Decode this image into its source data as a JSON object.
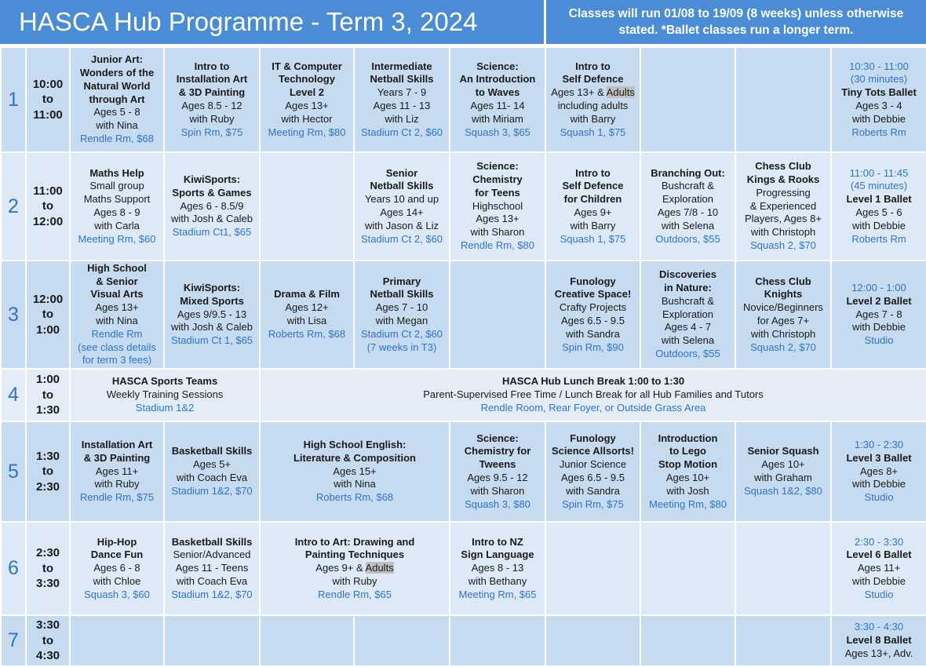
{
  "header": {
    "title": "HASCA Hub Programme - Term 3, 2024",
    "note": "Classes will run 01/08 to 19/09 (8 weeks) unless otherwise stated. *Ballet classes run a longer term."
  },
  "table": {
    "rows": [
      {
        "number": 1,
        "time": [
          "10:00",
          "to",
          "11:00"
        ],
        "cells": [
          {
            "title": [
              "Junior Art:",
              "Wonders of the",
              "Natural World",
              "through Art"
            ],
            "details": [
              "Ages 5 - 8",
              "with Nina"
            ],
            "location": [
              "Rendle Rm, $68"
            ]
          },
          {
            "title": [
              "Intro to",
              "Installation Art",
              "& 3D Painting"
            ],
            "details": [
              "Ages 8.5 - 12",
              "with Ruby"
            ],
            "location": [
              "Spin Rm, $75"
            ]
          },
          {
            "title": [
              "IT & Computer",
              "Technology",
              "Level 2"
            ],
            "details": [
              "Ages 13+",
              "with Hector"
            ],
            "location": [
              "Meeting Rm, $80"
            ]
          },
          {
            "title": [
              "Intermediate",
              "Netball Skills"
            ],
            "details": [
              "Years 7 - 9",
              "Ages 11 - 13",
              "with Liz"
            ],
            "location": [
              "Stadium Ct 2, $60"
            ]
          },
          {
            "title": [
              "Science:",
              "An Introduction",
              "to Waves"
            ],
            "details": [
              "Ages 11- 14",
              "with Miriam"
            ],
            "location": [
              "Squash  3, $65"
            ]
          },
          {
            "title": [
              "Intro to",
              "Self Defence"
            ],
            "details": [
              [
                "Ages 13+ & ",
                "Adults"
              ],
              "including adults",
              "with Barry"
            ],
            "location": [
              "Squash 1, $75"
            ]
          },
          null,
          null,
          {
            "time": [
              "10:30 - 11:00",
              "(30 minutes)"
            ],
            "title": [
              "Tiny Tots Ballet"
            ],
            "details": [
              "Ages 3 - 4",
              "with Debbie"
            ],
            "location": [
              "Roberts Rm"
            ]
          }
        ]
      },
      {
        "number": 2,
        "time": [
          "11:00",
          "to",
          "12:00"
        ],
        "cells": [
          {
            "title": [
              "Maths Help"
            ],
            "details": [
              "Small group",
              "Maths Support",
              "Ages 8 - 9",
              "with Carla"
            ],
            "location": [
              "Meeting Rm, $60"
            ]
          },
          {
            "title": [
              "KiwiSports:",
              "Sports & Games"
            ],
            "details": [
              "Ages 6 - 8.5/9",
              "with Josh & Caleb"
            ],
            "location": [
              "Stadium Ct1, $65"
            ]
          },
          null,
          {
            "title": [
              "Senior",
              "Netball Skills"
            ],
            "details": [
              "Years 10 and up",
              "Ages 14+",
              "with Jason & Liz"
            ],
            "location": [
              "Stadium Ct 2, $60"
            ]
          },
          {
            "title": [
              "Science:",
              "Chemistry",
              "for Teens"
            ],
            "details": [
              "Highschool",
              "Ages 13+",
              "with Sharon"
            ],
            "location": [
              "Rendle Rm, $80"
            ]
          },
          {
            "title": [
              "Intro to",
              "Self Defence",
              "for Children"
            ],
            "details": [
              "Ages 9+",
              "with Barry"
            ],
            "location": [
              "Squash 1, $75"
            ]
          },
          {
            "title": [
              "Branching Out:"
            ],
            "details": [
              "Bushcraft &",
              "Exploration",
              "Ages 7/8 - 10",
              "with Selena"
            ],
            "location": [
              "Outdoors, $55"
            ]
          },
          {
            "title": [
              "Chess Club",
              "Kings & Rooks"
            ],
            "details": [
              "Progressing",
              "& Experienced",
              "Players, Ages 8+",
              "with Christoph"
            ],
            "location": [
              "Squash 2, $70"
            ]
          },
          {
            "time": [
              "11:00 - 11:45",
              "(45 minutes)"
            ],
            "title": [
              "Level 1 Ballet"
            ],
            "details": [
              "Ages 5 - 6",
              "with Debbie"
            ],
            "location": [
              "Roberts Rm"
            ]
          }
        ]
      },
      {
        "number": 3,
        "time": [
          "12:00",
          "to",
          "1:00"
        ],
        "cells": [
          {
            "title": [
              "High School",
              "& Senior",
              "Visual Arts"
            ],
            "details": [
              "Ages 13+",
              "with Nina"
            ],
            "location": [
              "Rendle Rm",
              "(see class details",
              "for term 3 fees)"
            ]
          },
          {
            "title": [
              "KiwiSports:",
              "Mixed Sports"
            ],
            "details": [
              "Ages 9/9.5 - 13",
              "with Josh & Caleb"
            ],
            "location": [
              "Stadium Ct 1, $65"
            ]
          },
          {
            "title": [
              "Drama & Film"
            ],
            "details": [
              "Ages 12+",
              "with Lisa"
            ],
            "location": [
              "Roberts Rm, $68"
            ]
          },
          {
            "title": [
              "Primary",
              "Netball Skills"
            ],
            "details": [
              "Ages 7 - 10",
              "with Megan"
            ],
            "location": [
              "Stadium Ct 2, $60",
              "(7 weeks in T3)"
            ]
          },
          null,
          {
            "title": [
              "Funology",
              "Creative Space!"
            ],
            "details": [
              "Crafty Projects",
              "Ages 6.5 - 9.5",
              "with Sandra"
            ],
            "location": [
              "Spin Rm, $90"
            ]
          },
          {
            "title": [
              "Discoveries",
              "in Nature:"
            ],
            "details": [
              "Bushcraft &",
              "Exploration",
              "Ages 4 - 7",
              "with Selena"
            ],
            "location": [
              "Outdoors, $55"
            ]
          },
          {
            "title": [
              "Chess Club",
              "Knights"
            ],
            "details": [
              "Novice/Beginners",
              "for Ages 7+",
              "with Christoph"
            ],
            "location": [
              "Squash 2, $70"
            ]
          },
          {
            "time": [
              "12:00 - 1:00"
            ],
            "title": [
              "Level 2 Ballet"
            ],
            "details": [
              "Ages 7 - 8",
              "with Debbie"
            ],
            "location": [
              "Studio"
            ]
          }
        ]
      },
      {
        "number": 4,
        "time": [
          "1:00",
          "to",
          "1:30"
        ],
        "cells": [
          {
            "title": [
              "HASCA Sports Teams"
            ],
            "details": [
              "Weekly Training Sessions"
            ],
            "location": [
              "Stadium 1&2"
            ]
          },
          {
            "title": [
              "HASCA Hub Lunch Break 1:00 to 1:30"
            ],
            "details": [
              "Parent-Supervised Free Time / Lunch Break for all Hub Families and Tutors"
            ],
            "location": [
              "Rendle Room, Rear Foyer, or Outside Grass Area"
            ]
          }
        ]
      },
      {
        "number": 5,
        "time": [
          "1:30",
          "to",
          "2:30"
        ],
        "cells": [
          {
            "title": [
              "Installation Art",
              "& 3D Painting"
            ],
            "details": [
              "Ages 11+",
              "with Ruby"
            ],
            "location": [
              "Rendle Rm, $75"
            ]
          },
          {
            "title": [
              "Basketball Skills"
            ],
            "details": [
              "Ages 5+",
              "with Coach Eva"
            ],
            "location": [
              "Stadium 1&2, $70"
            ]
          },
          {
            "title": [
              "High School English:",
              "Literature & Composition"
            ],
            "details": [
              "Ages 15+",
              "with Nina"
            ],
            "location": [
              "Roberts Rm, $68"
            ]
          },
          {
            "title": [
              "Science:",
              "Chemistry for",
              "Tweens"
            ],
            "details": [
              "Ages 9.5 - 12",
              "with Sharon"
            ],
            "location": [
              "Squash 3, $80"
            ]
          },
          {
            "title": [
              "Funology",
              "Science Allsorts!"
            ],
            "details": [
              "Junior Science",
              "Ages 6.5 - 9.5",
              "with Sandra"
            ],
            "location": [
              "Spin Rm, $75"
            ]
          },
          {
            "title": [
              "Introduction",
              "to Lego",
              "Stop Motion"
            ],
            "details": [
              "Ages 10+",
              "with Josh"
            ],
            "location": [
              "Meeting Rm, $80"
            ]
          },
          {
            "title": [
              "Senior Squash"
            ],
            "details": [
              "Ages 10+",
              "with Graham"
            ],
            "location": [
              "Squash 1&2, $80"
            ]
          },
          {
            "time": [
              "1:30 - 2:30"
            ],
            "title": [
              "Level 3 Ballet"
            ],
            "details": [
              "Ages 8+",
              "with Debbie"
            ],
            "location": [
              "Studio"
            ]
          }
        ]
      },
      {
        "number": 6,
        "time": [
          "2:30",
          "to",
          "3:30"
        ],
        "cells": [
          {
            "title": [
              "Hip-Hop",
              "Dance Fun"
            ],
            "details": [
              "Ages 6 - 8",
              "with Chloe"
            ],
            "location": [
              "Squash 3, $60"
            ]
          },
          {
            "title": [
              "Basketball Skills"
            ],
            "details": [
              "Senior/Advanced",
              "Ages 11 - Teens",
              "with Coach Eva"
            ],
            "location": [
              "Stadium 1&2, $70"
            ]
          },
          {
            "title": [
              "Intro to Art: Drawing and",
              "Painting Techniques"
            ],
            "details": [
              [
                "Ages 9+ & ",
                "Adults"
              ],
              "with Ruby"
            ],
            "location": [
              "Rendle Rm, $65"
            ]
          },
          {
            "title": [
              "Intro to NZ",
              "Sign Language"
            ],
            "details": [
              "Ages 8 - 13",
              "with Bethany"
            ],
            "location": [
              "Meeting Rm, $65"
            ]
          },
          null,
          null,
          null,
          {
            "time": [
              "2:30 - 3:30"
            ],
            "title": [
              "Level 6 Ballet"
            ],
            "details": [
              "Ages 11+",
              "with Debbie"
            ],
            "location": [
              "Studio"
            ]
          }
        ]
      },
      {
        "number": 7,
        "time": [
          "3:30",
          "to",
          "4:30"
        ],
        "cells": [
          null,
          null,
          null,
          null,
          null,
          null,
          null,
          null,
          {
            "time": [
              "3:30 - 4:30"
            ],
            "title": [
              "Level 8 Ballet"
            ],
            "details": [
              "Ages 13+, Adv."
            ]
          }
        ]
      }
    ]
  }
}
